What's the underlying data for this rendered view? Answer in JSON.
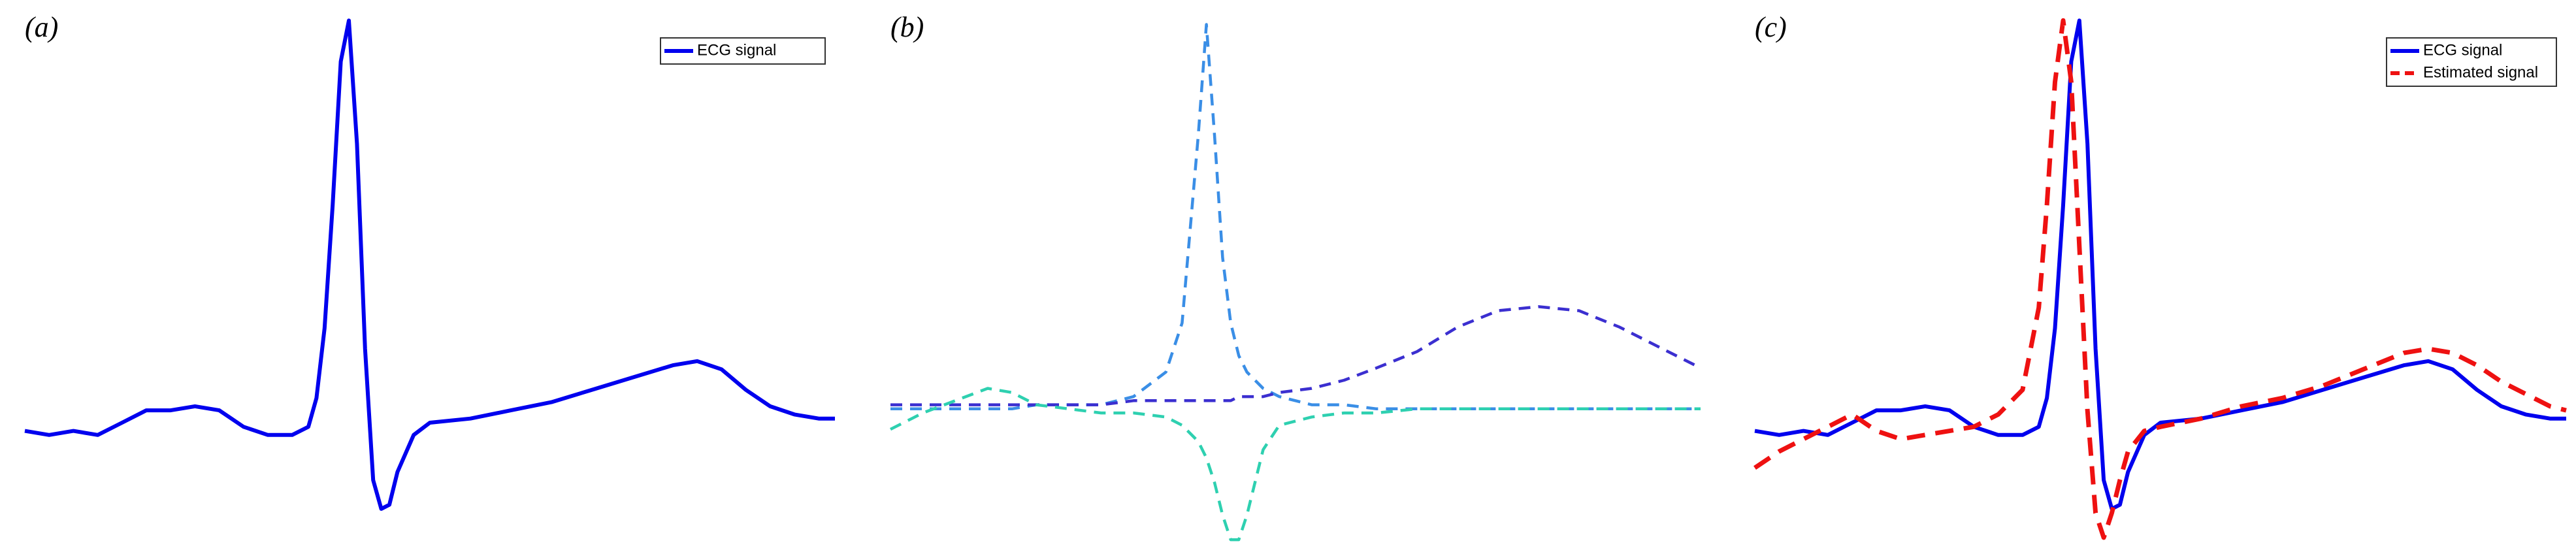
{
  "chart_data": [
    {
      "type": "line",
      "title": "(a)",
      "legend": "upper right",
      "xlim": [
        0,
        100
      ],
      "ylim": [
        -0.3,
        1.05
      ],
      "x": [
        0,
        3,
        6,
        9,
        12,
        15,
        18,
        21,
        24,
        27,
        30,
        33,
        35,
        36,
        37,
        38,
        39,
        40,
        41,
        42,
        43,
        44,
        45,
        46,
        48,
        50,
        55,
        60,
        65,
        70,
        75,
        80,
        83,
        86,
        89,
        92,
        95,
        98,
        100
      ],
      "series": [
        {
          "name": "ECG signal",
          "color": "#0000ee",
          "linestyle": "solid",
          "values": [
            0,
            -0.01,
            0,
            -0.01,
            0.02,
            0.05,
            0.05,
            0.06,
            0.05,
            0.01,
            -0.01,
            -0.01,
            0.01,
            0.08,
            0.25,
            0.55,
            0.9,
            1.0,
            0.7,
            0.2,
            -0.12,
            -0.19,
            -0.18,
            -0.1,
            -0.01,
            0.02,
            0.03,
            0.05,
            0.07,
            0.1,
            0.13,
            0.16,
            0.17,
            0.15,
            0.1,
            0.06,
            0.04,
            0.03,
            0.03
          ]
        }
      ]
    },
    {
      "type": "line",
      "title": "(b)",
      "xlim": [
        0,
        100
      ],
      "ylim": [
        -0.355,
        1.0
      ],
      "x": [
        0,
        4,
        8,
        12,
        15,
        18,
        22,
        26,
        30,
        34,
        36,
        38,
        39,
        40,
        41,
        42,
        43,
        44,
        46,
        48,
        52,
        56,
        60,
        65,
        70,
        75,
        80,
        85,
        90,
        95,
        100
      ],
      "series": [
        {
          "color": "#3a8ee6",
          "linestyle": "dashed",
          "values": [
            0,
            0,
            0,
            0,
            0,
            0.01,
            0.01,
            0.01,
            0.03,
            0.09,
            0.21,
            0.67,
            0.94,
            0.67,
            0.37,
            0.21,
            0.13,
            0.09,
            0.05,
            0.03,
            0.01,
            0.01,
            0,
            0,
            0,
            0,
            0,
            0,
            0,
            0,
            0
          ]
        },
        {
          "color": "#3b2fd0",
          "linestyle": "dashed",
          "values": [
            0.01,
            0.01,
            0.01,
            0.01,
            0.01,
            0.01,
            0.01,
            0.01,
            0.02,
            0.02,
            0.02,
            0.02,
            0.02,
            0.02,
            0.02,
            0.02,
            0.03,
            0.03,
            0.03,
            0.04,
            0.05,
            0.07,
            0.1,
            0.14,
            0.2,
            0.24,
            0.25,
            0.24,
            0.2,
            0.15,
            0.1
          ]
        },
        {
          "color": "#2ed0b0",
          "linestyle": "dashed",
          "values": [
            -0.05,
            -0.01,
            0.02,
            0.05,
            0.04,
            0.01,
            0,
            -0.01,
            -0.01,
            -0.02,
            -0.04,
            -0.08,
            -0.12,
            -0.18,
            -0.26,
            -0.32,
            -0.32,
            -0.26,
            -0.1,
            -0.04,
            -0.02,
            -0.01,
            -0.01,
            0,
            0,
            0,
            0,
            0,
            0,
            0,
            0
          ]
        }
      ]
    },
    {
      "type": "line",
      "title": "(c)",
      "legend": "upper right",
      "xlim": [
        0,
        100
      ],
      "ylim": [
        -0.3,
        1.05
      ],
      "x": [
        0,
        3,
        6,
        9,
        12,
        15,
        18,
        21,
        24,
        27,
        30,
        33,
        35,
        36,
        37,
        38,
        39,
        40,
        41,
        42,
        43,
        44,
        45,
        46,
        48,
        50,
        55,
        60,
        65,
        70,
        75,
        80,
        83,
        86,
        89,
        92,
        95,
        98,
        100
      ],
      "series": [
        {
          "name": "ECG signal",
          "color": "#0000ee",
          "linestyle": "solid",
          "values": [
            0,
            -0.01,
            0,
            -0.01,
            0.02,
            0.05,
            0.05,
            0.06,
            0.05,
            0.01,
            -0.01,
            -0.01,
            0.01,
            0.08,
            0.25,
            0.55,
            0.9,
            1.0,
            0.7,
            0.2,
            -0.12,
            -0.19,
            -0.18,
            -0.1,
            -0.01,
            0.02,
            0.03,
            0.05,
            0.07,
            0.1,
            0.13,
            0.16,
            0.17,
            0.15,
            0.1,
            0.06,
            0.04,
            0.03,
            0.03
          ]
        },
        {
          "name": "Estimated signal",
          "color": "#ee1111",
          "linestyle": "dashed",
          "values": [
            -0.09,
            -0.05,
            -0.02,
            0.01,
            0.04,
            0,
            -0.02,
            -0.01,
            0,
            0.01,
            0.04,
            0.1,
            0.3,
            0.55,
            0.85,
            1.0,
            0.85,
            0.45,
            0.05,
            -0.2,
            -0.26,
            -0.2,
            -0.12,
            -0.05,
            0,
            0.01,
            0.03,
            0.06,
            0.08,
            0.11,
            0.15,
            0.19,
            0.2,
            0.19,
            0.16,
            0.12,
            0.09,
            0.06,
            0.05
          ]
        }
      ]
    }
  ]
}
